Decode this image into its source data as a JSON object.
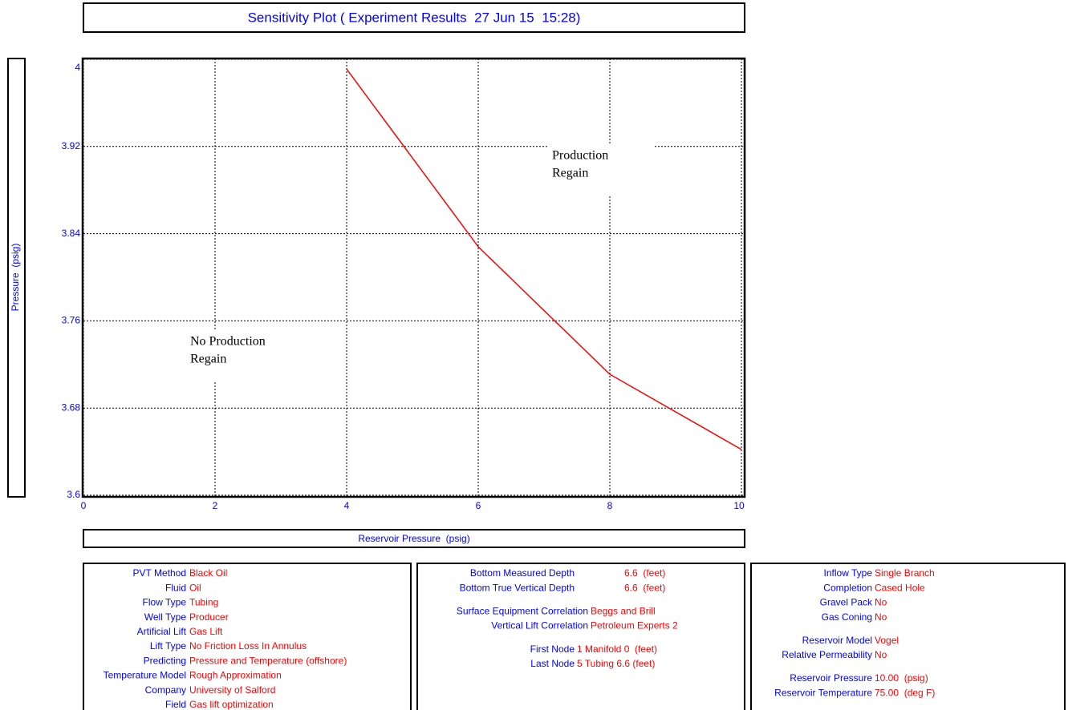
{
  "chart_data": {
    "type": "line",
    "title": "Sensitivity Plot ( Experiment Results  27 Jun 15  15:28)",
    "x_label": "Reservoir Pressure  (psig)",
    "y_label": "Pressure  (psig)",
    "x": [
      4,
      6,
      8,
      10
    ],
    "values": [
      3.991,
      3.828,
      3.711,
      3.642
    ],
    "color": "#ff0000",
    "xlim": [
      0,
      10
    ],
    "xticks": [
      0,
      2,
      4,
      6,
      8,
      10
    ],
    "ylim": [
      3.6,
      4
    ],
    "yticks": [
      3.6,
      3.68,
      3.76,
      3.84,
      3.92,
      4
    ],
    "grid": true,
    "annotations": [
      [
        "No Production",
        "Regain"
      ],
      [
        "Production",
        "Regain"
      ]
    ]
  },
  "info_panels": [
    {
      "groups": [
        [
          {
            "label": "PVT Method",
            "value": "Black Oil"
          },
          {
            "label": "Fluid",
            "value": "Oil"
          },
          {
            "label": "Flow Type",
            "value": "Tubing"
          },
          {
            "label": "Well Type",
            "value": "Producer"
          },
          {
            "label": "Artificial Lift",
            "value": "Gas Lift"
          },
          {
            "label": "Lift Type",
            "value": "No Friction Loss In Annulus"
          },
          {
            "label": "Predicting",
            "value": "Pressure and Temperature (offshore)"
          },
          {
            "label": "Temperature Model",
            "value": "Rough Approximation"
          },
          {
            "label": "Company",
            "value": "University of Salford"
          },
          {
            "label": "Field",
            "value": "Gas lift optimization"
          }
        ]
      ]
    },
    {
      "groups": [
        [
          {
            "label": "Bottom Measured Depth",
            "value": "6.6  (feet)"
          },
          {
            "label": "Bottom True Vertical Depth",
            "value": "6.6  (feet)"
          }
        ],
        [
          {
            "label": "Surface Equipment Correlation",
            "value": "Beggs and Brill"
          },
          {
            "label": "Vertical Lift Correlation",
            "value": "Petroleum Experts 2"
          }
        ],
        [
          {
            "label": "First Node",
            "value": "1 Manifold 0  (feet)"
          },
          {
            "label": "Last Node",
            "value": "5 Tubing 6.6 (feet)"
          }
        ]
      ]
    },
    {
      "groups": [
        [
          {
            "label": "Inflow Type",
            "value": "Single Branch"
          },
          {
            "label": "Completion",
            "value": "Cased Hole"
          },
          {
            "label": "Gravel Pack",
            "value": "No"
          },
          {
            "label": "Gas Coning",
            "value": "No"
          }
        ],
        [
          {
            "label": "Reservoir Model",
            "value": "Vogel"
          },
          {
            "label": "Relative Permeability",
            "value": "No"
          }
        ],
        [
          {
            "label": "Reservoir Pressure",
            "value": "10.00  (psig)"
          },
          {
            "label": "Reservoir Temperature",
            "value": "75.00  (deg F)"
          }
        ]
      ]
    }
  ]
}
